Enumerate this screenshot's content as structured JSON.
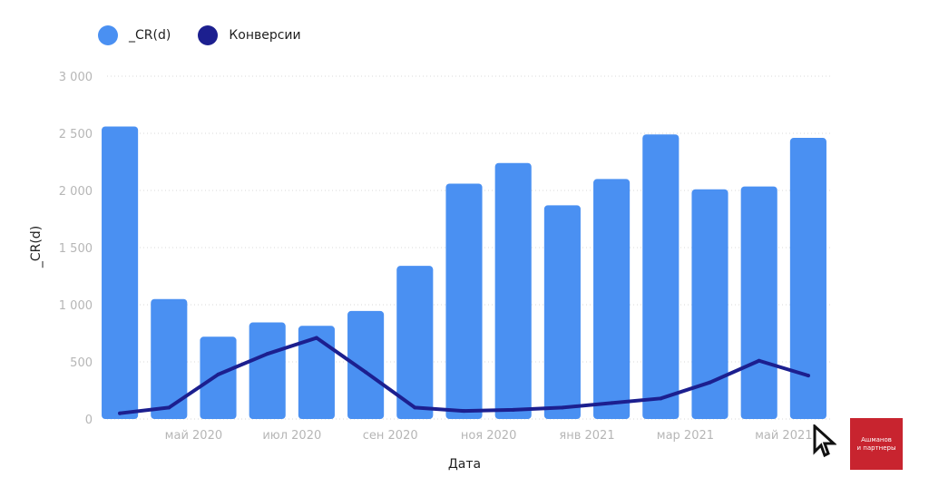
{
  "legend": {
    "items": [
      {
        "label": "_CR(d)",
        "color": "#4a90f2"
      },
      {
        "label": "Конверсии",
        "color": "#1c1f8f"
      }
    ]
  },
  "logo": {
    "line1": "Ашманов",
    "line2": "и партнеры",
    "bg_color": "#c8242f"
  },
  "chart_data": {
    "type": "bar",
    "xlabel": "Дата",
    "ylabel": "_CR(d)",
    "ylim": [
      0,
      3000
    ],
    "yticks": [
      "0",
      "500",
      "1 000",
      "1 500",
      "2 000",
      "2 500",
      "3 000"
    ],
    "ytick_values": [
      0,
      500,
      1000,
      1500,
      2000,
      2500,
      3000
    ],
    "grid": "horizontal dotted",
    "legend_position": "top-left",
    "categories": [
      "апр 2020",
      "май 2020",
      "июн 2020",
      "июл 2020",
      "авг 2020",
      "сен 2020",
      "окт 2020",
      "ноя 2020",
      "дек 2020",
      "янв 2021",
      "фев 2021",
      "мар 2021",
      "апр 2021",
      "май 2021",
      "июн 2021"
    ],
    "visible_xtick_labels": [
      "май 2020",
      "июл 2020",
      "сен 2020",
      "ноя 2020",
      "янв 2021",
      "мар 2021",
      "май 2021"
    ],
    "series": [
      {
        "name": "_CR(d)",
        "type": "bar",
        "color": "#4a90f2",
        "values": [
          2560,
          1050,
          720,
          845,
          815,
          945,
          1340,
          2060,
          2240,
          1870,
          2100,
          2490,
          2010,
          2035,
          2460
        ]
      },
      {
        "name": "Конверсии",
        "type": "line",
        "color": "#1c1f8f",
        "values": [
          50,
          100,
          390,
          570,
          710,
          410,
          100,
          70,
          80,
          100,
          140,
          180,
          320,
          510,
          380
        ]
      }
    ]
  }
}
